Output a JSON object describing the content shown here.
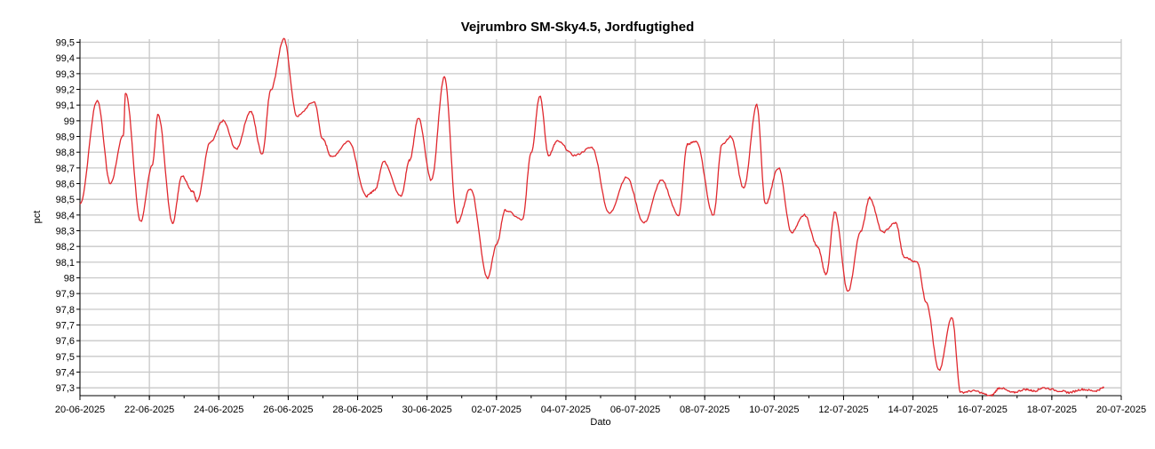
{
  "chart_data": {
    "type": "line",
    "title": "Vejrumbro SM-Sky4.5, Jordfugtighed",
    "xlabel": "Dato",
    "ylabel": "pct",
    "grid": true,
    "legend": "none",
    "colors": {
      "line": "#e0282e",
      "grid": "#c8c8c8",
      "axis": "#000000",
      "background": "#ffffff"
    },
    "xlim": [
      "2025-06-20",
      "2025-07-20"
    ],
    "ylim": [
      97.25,
      99.52
    ],
    "xticks": [
      "2025-06-20",
      "2025-06-22",
      "2025-06-24",
      "2025-06-26",
      "2025-06-28",
      "2025-06-30",
      "2025-07-02",
      "2025-07-04",
      "2025-07-06",
      "2025-07-08",
      "2025-07-10",
      "2025-07-12",
      "2025-07-14",
      "2025-07-16",
      "2025-07-18",
      "2025-07-20"
    ],
    "xtick_labels": [
      "20-06-2025",
      "22-06-2025",
      "24-06-2025",
      "26-06-2025",
      "28-06-2025",
      "30-06-2025",
      "02-07-2025",
      "04-07-2025",
      "06-07-2025",
      "08-07-2025",
      "10-07-2025",
      "12-07-2025",
      "14-07-2025",
      "16-07-2025",
      "18-07-2025",
      "20-07-2025"
    ],
    "yticks": [
      97.3,
      97.4,
      97.5,
      97.6,
      97.7,
      97.8,
      97.9,
      98.0,
      98.1,
      98.2,
      98.3,
      98.4,
      98.5,
      98.6,
      98.7,
      98.8,
      98.9,
      99.0,
      99.1,
      99.2,
      99.3,
      99.4,
      99.5
    ],
    "ytick_labels": [
      "97,3",
      "97,4",
      "97,5",
      "97,6",
      "97,7",
      "97,8",
      "97,9",
      "98",
      "98,1",
      "98,2",
      "98,3",
      "98,4",
      "98,5",
      "98,6",
      "98,7",
      "98,8",
      "98,9",
      "99",
      "99,1",
      "99,2",
      "99,3",
      "99,4",
      "99,5"
    ],
    "series": [
      {
        "x": [
          "2025-06-20 00:00",
          "2025-06-20 12:00",
          "2025-06-20 21:00",
          "2025-06-21 06:00",
          "2025-06-21 07:30",
          "2025-06-21 18:00",
          "2025-06-22 02:00",
          "2025-06-22 06:00",
          "2025-06-22 16:00",
          "2025-06-22 22:30",
          "2025-06-23 06:00",
          "2025-06-23 09:00",
          "2025-06-23 18:00",
          "2025-06-24 03:00",
          "2025-06-24 12:00",
          "2025-06-24 22:00",
          "2025-06-25 06:00",
          "2025-06-25 12:00",
          "2025-06-25 21:00",
          "2025-06-26 06:00",
          "2025-06-26 18:00",
          "2025-06-27 00:00",
          "2025-06-27 06:00",
          "2025-06-27 18:00",
          "2025-06-28 06:00",
          "2025-06-28 12:00",
          "2025-06-28 18:00",
          "2025-06-29 06:00",
          "2025-06-29 12:00",
          "2025-06-29 18:00",
          "2025-06-30 03:00",
          "2025-06-30 12:00",
          "2025-06-30 21:00",
          "2025-07-01 06:00",
          "2025-07-01 18:00",
          "2025-07-02 00:00",
          "2025-07-02 06:00",
          "2025-07-02 18:00",
          "2025-07-03 00:00",
          "2025-07-03 06:00",
          "2025-07-03 12:00",
          "2025-07-03 18:00",
          "2025-07-04 06:00",
          "2025-07-04 18:00",
          "2025-07-05 06:00",
          "2025-07-05 18:00",
          "2025-07-06 06:00",
          "2025-07-06 18:00",
          "2025-07-07 06:00",
          "2025-07-07 12:00",
          "2025-07-07 18:00",
          "2025-07-08 06:00",
          "2025-07-08 12:00",
          "2025-07-08 18:00",
          "2025-07-09 03:00",
          "2025-07-09 12:00",
          "2025-07-09 18:00",
          "2025-07-10 03:00",
          "2025-07-10 12:00",
          "2025-07-10 21:00",
          "2025-07-11 06:00",
          "2025-07-11 12:00",
          "2025-07-11 18:00",
          "2025-07-12 03:00",
          "2025-07-12 12:00",
          "2025-07-12 18:00",
          "2025-07-13 03:00",
          "2025-07-13 12:00",
          "2025-07-13 18:00",
          "2025-07-14 03:00",
          "2025-07-14 09:00",
          "2025-07-14 18:00",
          "2025-07-15 03:00",
          "2025-07-15 09:00",
          "2025-07-15 18:00",
          "2025-07-16 06:00",
          "2025-07-16 12:00",
          "2025-07-16 21:00",
          "2025-07-17 06:00",
          "2025-07-17 12:00",
          "2025-07-17 18:00",
          "2025-07-18 06:00",
          "2025-07-18 12:00",
          "2025-07-18 21:00",
          "2025-07-19 06:00",
          "2025-07-19 12:00"
        ],
        "y": [
          98.47,
          99.13,
          98.6,
          98.91,
          99.18,
          98.36,
          98.72,
          99.04,
          98.35,
          98.65,
          98.55,
          98.49,
          98.86,
          99.0,
          98.82,
          99.06,
          98.79,
          99.2,
          99.52,
          99.03,
          99.12,
          98.88,
          98.77,
          98.87,
          98.52,
          98.56,
          98.74,
          98.52,
          98.75,
          99.02,
          98.62,
          99.28,
          98.35,
          98.57,
          98.0,
          98.21,
          98.43,
          98.37,
          98.8,
          99.16,
          98.78,
          98.87,
          98.78,
          98.83,
          98.41,
          98.64,
          98.35,
          98.62,
          98.4,
          98.85,
          98.87,
          98.4,
          98.85,
          98.9,
          98.57,
          99.1,
          98.47,
          98.7,
          98.29,
          98.4,
          98.2,
          98.02,
          98.42,
          97.91,
          98.3,
          98.51,
          98.29,
          98.35,
          98.13,
          98.1,
          97.85,
          97.41,
          97.75,
          97.27,
          97.28,
          97.25,
          97.3,
          97.27,
          97.29,
          97.28,
          97.3,
          97.28,
          97.27,
          97.29,
          97.28,
          97.3
        ]
      }
    ]
  }
}
